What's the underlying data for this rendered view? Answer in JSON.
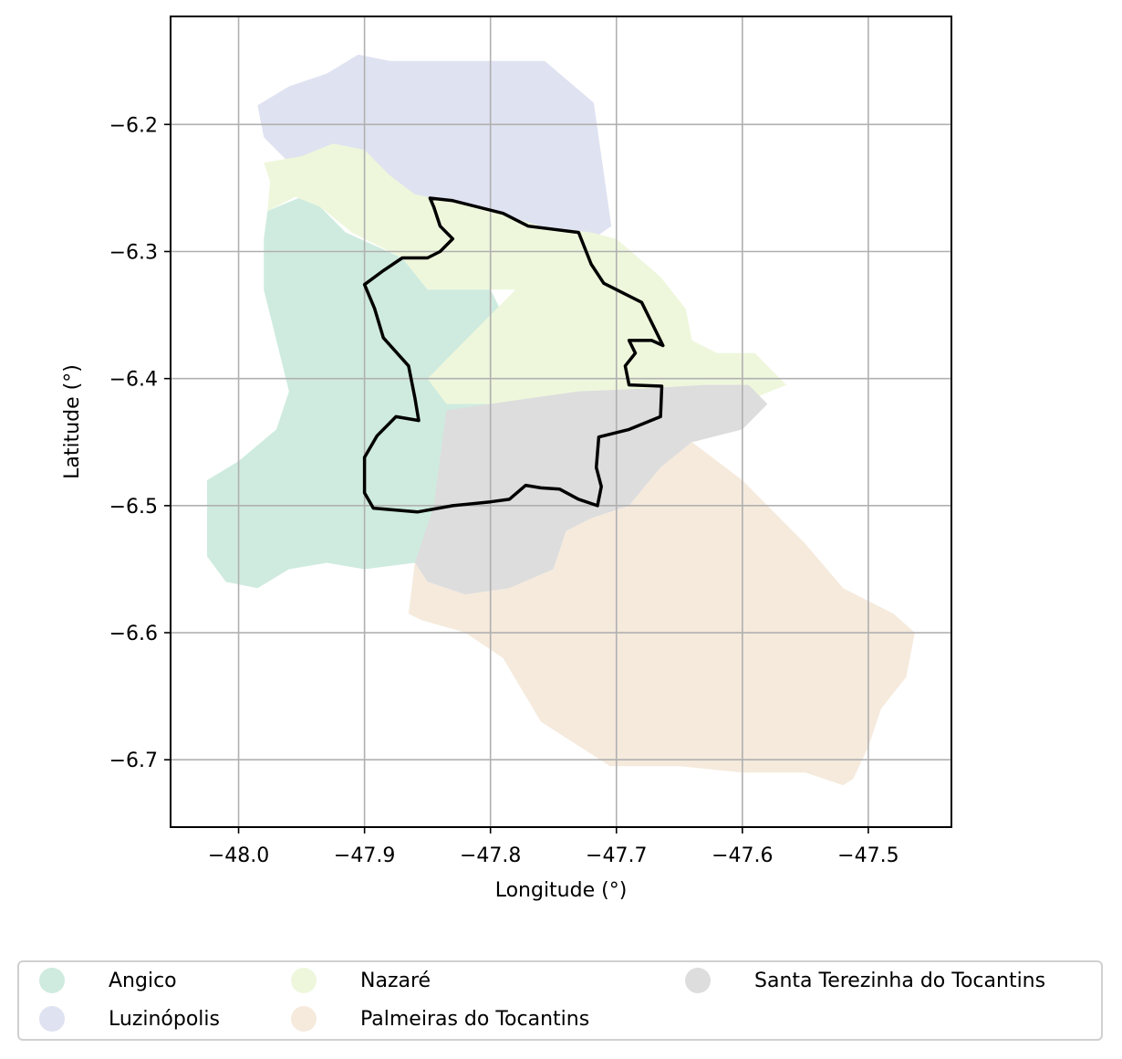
{
  "chart_data": {
    "type": "map",
    "xlabel": "Longitude (°)",
    "ylabel": "Latitude (°)",
    "xlim": [
      -48.054,
      -47.434
    ],
    "ylim": [
      -6.753,
      -6.115
    ],
    "xticks": [
      {
        "value": -48.0,
        "label": "−48.0"
      },
      {
        "value": -47.9,
        "label": "−47.9"
      },
      {
        "value": -47.8,
        "label": "−47.8"
      },
      {
        "value": -47.7,
        "label": "−47.7"
      },
      {
        "value": -47.6,
        "label": "−47.6"
      },
      {
        "value": -47.5,
        "label": "−47.5"
      }
    ],
    "yticks": [
      {
        "value": -6.2,
        "label": "−6.2"
      },
      {
        "value": -6.3,
        "label": "−6.3"
      },
      {
        "value": -6.4,
        "label": "−6.4"
      },
      {
        "value": -6.5,
        "label": "−6.5"
      },
      {
        "value": -6.6,
        "label": "−6.6"
      },
      {
        "value": -6.7,
        "label": "−6.7"
      }
    ],
    "grid": true,
    "legend_position": "bottom",
    "regions": [
      {
        "name": "Angico",
        "color": "#cfebdf",
        "polygon": [
          [
            -47.977,
            -6.268
          ],
          [
            -47.95,
            -6.257
          ],
          [
            -47.935,
            -6.265
          ],
          [
            -47.915,
            -6.285
          ],
          [
            -47.87,
            -6.305
          ],
          [
            -47.85,
            -6.33
          ],
          [
            -47.8,
            -6.33
          ],
          [
            -47.79,
            -6.35
          ],
          [
            -47.79,
            -6.37
          ],
          [
            -47.77,
            -6.39
          ],
          [
            -47.745,
            -6.41
          ],
          [
            -47.75,
            -6.43
          ],
          [
            -47.77,
            -6.455
          ],
          [
            -47.78,
            -6.5
          ],
          [
            -47.79,
            -6.54
          ],
          [
            -47.81,
            -6.56
          ],
          [
            -47.835,
            -6.545
          ],
          [
            -47.86,
            -6.545
          ],
          [
            -47.9,
            -6.55
          ],
          [
            -47.93,
            -6.545
          ],
          [
            -47.96,
            -6.55
          ],
          [
            -47.985,
            -6.565
          ],
          [
            -48.01,
            -6.56
          ],
          [
            -48.025,
            -6.54
          ],
          [
            -48.025,
            -6.48
          ],
          [
            -48.0,
            -6.465
          ],
          [
            -47.97,
            -6.44
          ],
          [
            -47.96,
            -6.41
          ],
          [
            -47.97,
            -6.37
          ],
          [
            -47.98,
            -6.33
          ],
          [
            -47.98,
            -6.29
          ]
        ]
      },
      {
        "name": "Luzinópolis",
        "color": "#dfe2f1",
        "polygon": [
          [
            -47.88,
            -6.15
          ],
          [
            -47.757,
            -6.15
          ],
          [
            -47.718,
            -6.183
          ],
          [
            -47.704,
            -6.28
          ],
          [
            -47.74,
            -6.305
          ],
          [
            -47.79,
            -6.32
          ],
          [
            -47.83,
            -6.31
          ],
          [
            -47.87,
            -6.29
          ],
          [
            -47.89,
            -6.26
          ],
          [
            -47.9,
            -6.23
          ],
          [
            -47.91,
            -6.22
          ],
          [
            -47.935,
            -6.228
          ],
          [
            -47.96,
            -6.23
          ],
          [
            -47.98,
            -6.21
          ],
          [
            -47.985,
            -6.185
          ],
          [
            -47.96,
            -6.17
          ],
          [
            -47.93,
            -6.16
          ],
          [
            -47.905,
            -6.145
          ]
        ]
      },
      {
        "name": "Nazaré",
        "color": "#eef7dc",
        "polygon": [
          [
            -47.98,
            -6.23
          ],
          [
            -47.95,
            -6.225
          ],
          [
            -47.925,
            -6.215
          ],
          [
            -47.9,
            -6.22
          ],
          [
            -47.88,
            -6.24
          ],
          [
            -47.86,
            -6.255
          ],
          [
            -47.81,
            -6.265
          ],
          [
            -47.76,
            -6.28
          ],
          [
            -47.72,
            -6.285
          ],
          [
            -47.7,
            -6.29
          ],
          [
            -47.665,
            -6.32
          ],
          [
            -47.645,
            -6.345
          ],
          [
            -47.64,
            -6.37
          ],
          [
            -47.62,
            -6.38
          ],
          [
            -47.59,
            -6.38
          ],
          [
            -47.565,
            -6.405
          ],
          [
            -47.59,
            -6.415
          ],
          [
            -47.605,
            -6.405
          ],
          [
            -47.63,
            -6.405
          ],
          [
            -47.68,
            -6.408
          ],
          [
            -47.73,
            -6.41
          ],
          [
            -47.8,
            -6.42
          ],
          [
            -47.835,
            -6.42
          ],
          [
            -47.85,
            -6.4
          ],
          [
            -47.83,
            -6.38
          ],
          [
            -47.8,
            -6.35
          ],
          [
            -47.78,
            -6.33
          ],
          [
            -47.85,
            -6.33
          ],
          [
            -47.87,
            -6.305
          ],
          [
            -47.91,
            -6.285
          ],
          [
            -47.935,
            -6.265
          ],
          [
            -47.955,
            -6.257
          ],
          [
            -47.977,
            -6.268
          ],
          [
            -47.975,
            -6.245
          ]
        ]
      },
      {
        "name": "Santa Terezinha do Tocantins",
        "color": "#dddddd",
        "polygon": [
          [
            -47.835,
            -6.425
          ],
          [
            -47.8,
            -6.42
          ],
          [
            -47.73,
            -6.41
          ],
          [
            -47.68,
            -6.408
          ],
          [
            -47.63,
            -6.405
          ],
          [
            -47.595,
            -6.405
          ],
          [
            -47.58,
            -6.42
          ],
          [
            -47.6,
            -6.44
          ],
          [
            -47.64,
            -6.45
          ],
          [
            -47.665,
            -6.47
          ],
          [
            -47.69,
            -6.5
          ],
          [
            -47.72,
            -6.51
          ],
          [
            -47.74,
            -6.52
          ],
          [
            -47.75,
            -6.55
          ],
          [
            -47.785,
            -6.565
          ],
          [
            -47.82,
            -6.57
          ],
          [
            -47.85,
            -6.56
          ],
          [
            -47.86,
            -6.545
          ],
          [
            -47.845,
            -6.5
          ]
        ]
      },
      {
        "name": "Palmeiras do Tocantins",
        "color": "#f5eadc",
        "polygon": [
          [
            -47.64,
            -6.45
          ],
          [
            -47.6,
            -6.48
          ],
          [
            -47.55,
            -6.53
          ],
          [
            -47.52,
            -6.565
          ],
          [
            -47.48,
            -6.585
          ],
          [
            -47.463,
            -6.6
          ],
          [
            -47.47,
            -6.635
          ],
          [
            -47.49,
            -6.66
          ],
          [
            -47.5,
            -6.69
          ],
          [
            -47.512,
            -6.715
          ],
          [
            -47.52,
            -6.72
          ],
          [
            -47.55,
            -6.71
          ],
          [
            -47.6,
            -6.71
          ],
          [
            -47.65,
            -6.705
          ],
          [
            -47.705,
            -6.705
          ],
          [
            -47.76,
            -6.67
          ],
          [
            -47.79,
            -6.62
          ],
          [
            -47.82,
            -6.6
          ],
          [
            -47.855,
            -6.59
          ],
          [
            -47.865,
            -6.585
          ],
          [
            -47.86,
            -6.545
          ],
          [
            -47.85,
            -6.56
          ],
          [
            -47.82,
            -6.57
          ],
          [
            -47.785,
            -6.565
          ],
          [
            -47.75,
            -6.55
          ],
          [
            -47.74,
            -6.52
          ],
          [
            -47.72,
            -6.51
          ],
          [
            -47.69,
            -6.5
          ],
          [
            -47.665,
            -6.47
          ]
        ]
      }
    ],
    "outline": {
      "color": "#000000",
      "polygon": [
        [
          -47.848,
          -6.258
        ],
        [
          -47.83,
          -6.26
        ],
        [
          -47.79,
          -6.27
        ],
        [
          -47.77,
          -6.28
        ],
        [
          -47.73,
          -6.285
        ],
        [
          -47.72,
          -6.31
        ],
        [
          -47.71,
          -6.325
        ],
        [
          -47.68,
          -6.34
        ],
        [
          -47.67,
          -6.36
        ],
        [
          -47.663,
          -6.374
        ],
        [
          -47.672,
          -6.37
        ],
        [
          -47.69,
          -6.37
        ],
        [
          -47.685,
          -6.38
        ],
        [
          -47.693,
          -6.39
        ],
        [
          -47.69,
          -6.405
        ],
        [
          -47.664,
          -6.406
        ],
        [
          -47.665,
          -6.43
        ],
        [
          -47.69,
          -6.44
        ],
        [
          -47.714,
          -6.446
        ],
        [
          -47.716,
          -6.47
        ],
        [
          -47.712,
          -6.485
        ],
        [
          -47.715,
          -6.5
        ],
        [
          -47.73,
          -6.495
        ],
        [
          -47.745,
          -6.487
        ],
        [
          -47.76,
          -6.486
        ],
        [
          -47.772,
          -6.484
        ],
        [
          -47.785,
          -6.495
        ],
        [
          -47.8,
          -6.497
        ],
        [
          -47.83,
          -6.5
        ],
        [
          -47.858,
          -6.505
        ],
        [
          -47.893,
          -6.502
        ],
        [
          -47.9,
          -6.49
        ],
        [
          -47.9,
          -6.462
        ],
        [
          -47.89,
          -6.445
        ],
        [
          -47.875,
          -6.43
        ],
        [
          -47.857,
          -6.433
        ],
        [
          -47.86,
          -6.415
        ],
        [
          -47.865,
          -6.39
        ],
        [
          -47.885,
          -6.368
        ],
        [
          -47.892,
          -6.345
        ],
        [
          -47.9,
          -6.326
        ],
        [
          -47.885,
          -6.315
        ],
        [
          -47.87,
          -6.305
        ],
        [
          -47.85,
          -6.305
        ],
        [
          -47.84,
          -6.3
        ],
        [
          -47.83,
          -6.29
        ],
        [
          -47.84,
          -6.28
        ],
        [
          -47.845,
          -6.265
        ]
      ]
    },
    "legend": [
      {
        "label": "Angico",
        "color": "#cfebdf"
      },
      {
        "label": "Luzinópolis",
        "color": "#dfe2f1"
      },
      {
        "label": "Nazaré",
        "color": "#eef7dc"
      },
      {
        "label": "Palmeiras do Tocantins",
        "color": "#f5eadc"
      },
      {
        "label": "Santa Terezinha do Tocantins",
        "color": "#dddddd"
      }
    ]
  }
}
